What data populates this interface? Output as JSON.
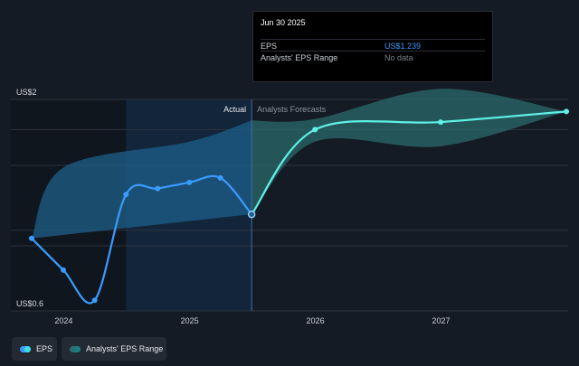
{
  "chart_data": {
    "type": "line",
    "y_axis_labels": {
      "top": "US$2",
      "bottom": "US$0.6"
    },
    "ylim": [
      0.6,
      2.0
    ],
    "xlim": [
      "2023-09-30",
      "2027-12-31"
    ],
    "x_ticks": [
      "2024",
      "2025",
      "2026",
      "2027"
    ],
    "divider_label_left": "Actual",
    "divider_label_right": "Analysts Forecasts",
    "divider_date": "2025-06-30",
    "highlight_start": "2024-06-30",
    "series": [
      {
        "name": "EPS",
        "color": "#3a9bff",
        "forecast_color": "#5ff0e6",
        "points": [
          {
            "x": "2023-09-30",
            "y": 1.08
          },
          {
            "x": "2023-12-31",
            "y": 0.87
          },
          {
            "x": "2024-03-31",
            "y": 0.67
          },
          {
            "x": "2024-06-30",
            "y": 1.37
          },
          {
            "x": "2024-09-30",
            "y": 1.41
          },
          {
            "x": "2024-12-31",
            "y": 1.45
          },
          {
            "x": "2025-03-31",
            "y": 1.48
          },
          {
            "x": "2025-06-30",
            "y": 1.239
          },
          {
            "x": "2025-12-31",
            "y": 1.8
          },
          {
            "x": "2026-12-31",
            "y": 1.85
          },
          {
            "x": "2027-12-31",
            "y": 1.92
          }
        ],
        "forecast_start_index": 7
      },
      {
        "name": "Analysts' EPS Range",
        "color": "#1e5f8a",
        "forecast_color": "#2a6b6b",
        "upper": [
          {
            "x": "2023-09-30",
            "y": 1.08
          },
          {
            "x": "2024-01-01",
            "y": 1.55
          },
          {
            "x": "2025-01-01",
            "y": 1.72
          },
          {
            "x": "2025-06-30",
            "y": 1.86
          },
          {
            "x": "2025-12-31",
            "y": 1.87
          },
          {
            "x": "2026-12-31",
            "y": 2.07
          },
          {
            "x": "2027-12-31",
            "y": 1.92
          }
        ],
        "lower": [
          {
            "x": "2023-09-30",
            "y": 1.08
          },
          {
            "x": "2025-06-30",
            "y": 1.24
          },
          {
            "x": "2025-12-31",
            "y": 1.72
          },
          {
            "x": "2026-12-31",
            "y": 1.69
          },
          {
            "x": "2027-12-31",
            "y": 1.92
          }
        ]
      }
    ]
  },
  "tooltip": {
    "date": "Jun 30 2025",
    "rows": [
      {
        "label": "EPS",
        "value": "US$1.239"
      },
      {
        "label": "Analysts' EPS Range",
        "value": "No data"
      }
    ]
  },
  "legend": [
    {
      "label": "EPS"
    },
    {
      "label": "Analysts' EPS Range"
    }
  ]
}
